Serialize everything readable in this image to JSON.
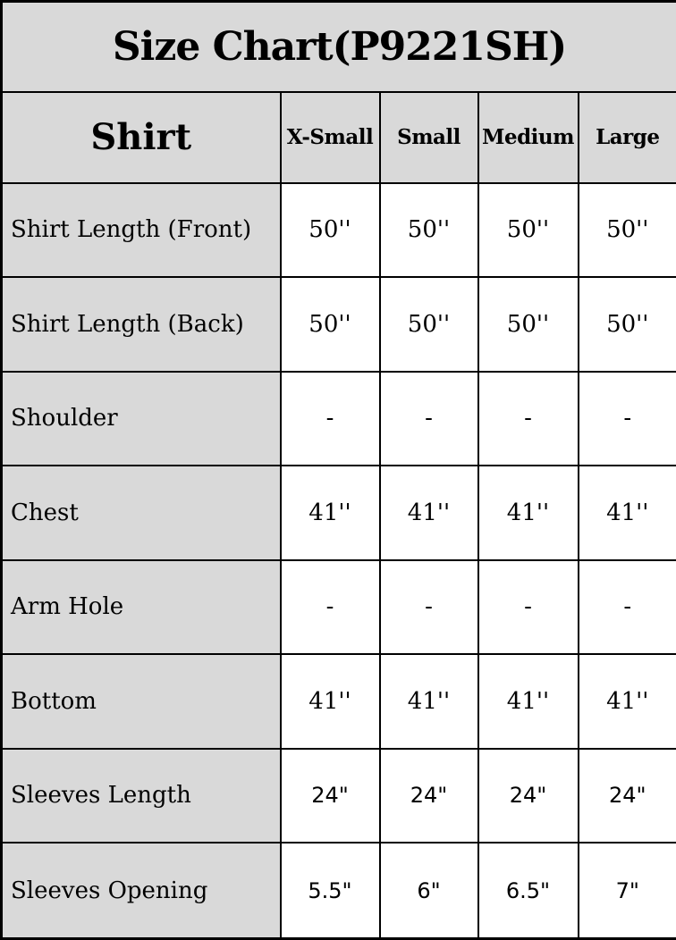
{
  "title": "Size Chart(P9221SH)",
  "colors": {
    "header_background": "#d9d9d9",
    "cell_background": "#ffffff",
    "border": "#000000",
    "text": "#000000"
  },
  "table": {
    "product_label": "Shirt",
    "size_headers": [
      "X-Small",
      "Small",
      "Medium",
      "Large"
    ],
    "rows": [
      {
        "label": "Shirt Length (Front)",
        "values": [
          "50''",
          "50''",
          "50''",
          "50''"
        ]
      },
      {
        "label": "Shirt Length (Back)",
        "values": [
          "50''",
          "50''",
          "50''",
          "50''"
        ]
      },
      {
        "label": "Shoulder",
        "values": [
          "-",
          "-",
          "-",
          "-"
        ]
      },
      {
        "label": "Chest",
        "values": [
          "41''",
          "41''",
          "41''",
          "41''"
        ]
      },
      {
        "label": "Arm Hole",
        "values": [
          "-",
          "-",
          "-",
          "-"
        ]
      },
      {
        "label": "Bottom",
        "values": [
          "41''",
          "41''",
          "41''",
          "41''"
        ]
      },
      {
        "label": "Sleeves Length",
        "values": [
          "24\"",
          "24\"",
          "24\"",
          "24\""
        ]
      },
      {
        "label": "Sleeves Opening",
        "values": [
          "5.5\"",
          "6\"",
          "6.5\"",
          "7\""
        ]
      }
    ]
  },
  "chart_data": {
    "type": "table",
    "title": "Size Chart(P9221SH)",
    "columns": [
      "Shirt",
      "X-Small",
      "Small",
      "Medium",
      "Large"
    ],
    "rows": [
      [
        "Shirt Length (Front)",
        "50''",
        "50''",
        "50''",
        "50''"
      ],
      [
        "Shirt Length (Back)",
        "50''",
        "50''",
        "50''",
        "50''"
      ],
      [
        "Shoulder",
        "-",
        "-",
        "-",
        "-"
      ],
      [
        "Chest",
        "41''",
        "41''",
        "41''",
        "41''"
      ],
      [
        "Arm Hole",
        "-",
        "-",
        "-",
        "-"
      ],
      [
        "Bottom",
        "41''",
        "41''",
        "41''",
        "41''"
      ],
      [
        "Sleeves Length",
        "24\"",
        "24\"",
        "24\"",
        "24\""
      ],
      [
        "Sleeves Opening",
        "5.5\"",
        "6\"",
        "6.5\"",
        "7\""
      ]
    ]
  }
}
